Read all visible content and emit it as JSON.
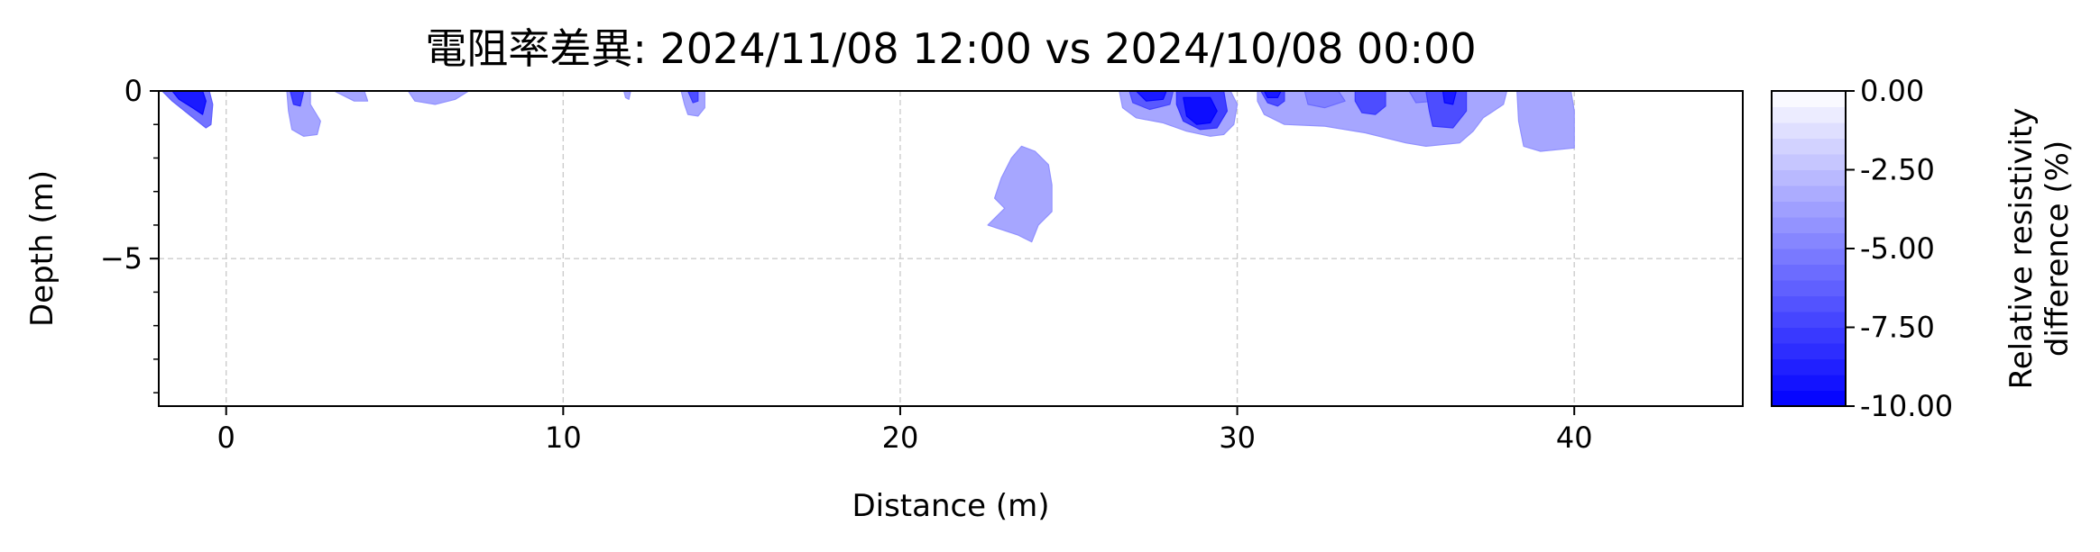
{
  "chart_data": {
    "type": "heatmap",
    "title": "電阻率差異: 2024/11/08 12:00 vs 2024/10/08 00:00",
    "xlabel": "Distance (m)",
    "ylabel": "Depth (m)",
    "xlim": [
      -2,
      45
    ],
    "ylim": [
      -9.4,
      0
    ],
    "x_ticks": [
      0,
      10,
      20,
      30,
      40
    ],
    "x_tick_labels": [
      "0",
      "10",
      "20",
      "30",
      "40"
    ],
    "y_ticks": [
      0,
      -5
    ],
    "y_tick_labels": [
      "0",
      "−5"
    ],
    "grid": true,
    "colorbar": {
      "label_line1": "Relative resistivity",
      "label_line2": "difference (%)",
      "range": [
        -10,
        0
      ],
      "ticks": [
        0,
        -2.5,
        -5,
        -7.5,
        -10
      ],
      "tick_labels": [
        "0.00",
        "-2.50",
        "-5.00",
        "-7.50",
        "-10.00"
      ],
      "levels": [
        -10,
        -9.5,
        -9,
        -8.5,
        -8,
        -7.5,
        -7,
        -6.5,
        -6,
        -5.5,
        -5,
        -4.5,
        -4,
        -3.5,
        -3,
        -2.5,
        -2,
        -1.5,
        -1,
        -0.5,
        0
      ],
      "color_low": "#0000ff",
      "color_high": "#ffffff"
    },
    "regions": [
      {
        "name": "anomaly-left-edge",
        "value": -5.5,
        "points": [
          [
            -1.9,
            0
          ],
          [
            -0.5,
            0
          ],
          [
            -0.4,
            -0.4
          ],
          [
            -0.45,
            -1.0
          ],
          [
            -0.6,
            -1.1
          ],
          [
            -1.1,
            -0.7
          ],
          [
            -1.6,
            -0.3
          ]
        ]
      },
      {
        "name": "anomaly-left-edge-core",
        "value": -9.0,
        "points": [
          [
            -1.6,
            0
          ],
          [
            -0.7,
            0
          ],
          [
            -0.6,
            -0.3
          ],
          [
            -0.7,
            -0.7
          ],
          [
            -1.0,
            -0.5
          ],
          [
            -1.4,
            -0.25
          ]
        ]
      },
      {
        "name": "anomaly-x2",
        "value": -3.5,
        "points": [
          [
            1.8,
            0
          ],
          [
            2.5,
            0
          ],
          [
            2.5,
            -0.4
          ],
          [
            2.8,
            -0.9
          ],
          [
            2.7,
            -1.3
          ],
          [
            2.3,
            -1.35
          ],
          [
            1.95,
            -1.15
          ],
          [
            1.85,
            -0.6
          ]
        ]
      },
      {
        "name": "anomaly-x2-core",
        "value": -7.5,
        "points": [
          [
            1.9,
            0
          ],
          [
            2.3,
            0
          ],
          [
            2.2,
            -0.45
          ],
          [
            2.0,
            -0.4
          ]
        ]
      },
      {
        "name": "anomaly-x3-7",
        "value": -3.5,
        "points": [
          [
            3.2,
            0
          ],
          [
            4.1,
            0
          ],
          [
            4.2,
            -0.3
          ],
          [
            3.8,
            -0.3
          ]
        ]
      },
      {
        "name": "anomaly-x5-7",
        "value": -3.5,
        "points": [
          [
            5.4,
            0
          ],
          [
            7.2,
            0
          ],
          [
            6.8,
            -0.25
          ],
          [
            6.2,
            -0.4
          ],
          [
            5.6,
            -0.3
          ]
        ]
      },
      {
        "name": "anomaly-x12",
        "value": -3.5,
        "points": [
          [
            11.8,
            0
          ],
          [
            12.0,
            0
          ],
          [
            11.95,
            -0.25
          ],
          [
            11.85,
            -0.2
          ]
        ]
      },
      {
        "name": "anomaly-x14",
        "value": -3.5,
        "points": [
          [
            13.5,
            0
          ],
          [
            14.2,
            0
          ],
          [
            14.2,
            -0.5
          ],
          [
            14.0,
            -0.75
          ],
          [
            13.7,
            -0.7
          ],
          [
            13.6,
            -0.4
          ]
        ]
      },
      {
        "name": "anomaly-x14-core",
        "value": -7.0,
        "points": [
          [
            13.7,
            0
          ],
          [
            14.0,
            0
          ],
          [
            14.0,
            -0.3
          ],
          [
            13.85,
            -0.35
          ]
        ]
      },
      {
        "name": "anomaly-x23",
        "value": -3.5,
        "points": [
          [
            23.6,
            -1.65
          ],
          [
            24.0,
            -1.8
          ],
          [
            24.4,
            -2.2
          ],
          [
            24.5,
            -2.8
          ],
          [
            24.5,
            -3.6
          ],
          [
            24.1,
            -4.0
          ],
          [
            23.9,
            -4.5
          ],
          [
            23.5,
            -4.3
          ],
          [
            22.6,
            -4.0
          ],
          [
            23.1,
            -3.5
          ],
          [
            22.8,
            -3.2
          ],
          [
            23.0,
            -2.6
          ],
          [
            23.3,
            -2.0
          ]
        ]
      },
      {
        "name": "anomaly-x25-29",
        "value": -3.5,
        "points": [
          [
            26.5,
            0
          ],
          [
            29.8,
            0
          ],
          [
            30.0,
            -0.4
          ],
          [
            29.9,
            -1.0
          ],
          [
            29.6,
            -1.3
          ],
          [
            29.2,
            -1.35
          ],
          [
            28.5,
            -1.2
          ],
          [
            27.8,
            -0.95
          ],
          [
            27.0,
            -0.8
          ],
          [
            26.6,
            -0.5
          ]
        ]
      },
      {
        "name": "anomaly-x27-4",
        "value": -6.5,
        "points": [
          [
            26.8,
            0
          ],
          [
            28.1,
            0
          ],
          [
            28.0,
            -0.4
          ],
          [
            27.4,
            -0.55
          ],
          [
            26.9,
            -0.35
          ]
        ]
      },
      {
        "name": "anomaly-x27-core",
        "value": -9.0,
        "points": [
          [
            27.0,
            0
          ],
          [
            27.9,
            0
          ],
          [
            27.8,
            -0.25
          ],
          [
            27.3,
            -0.3
          ]
        ]
      },
      {
        "name": "anomaly-x28-7",
        "value": -7.5,
        "points": [
          [
            28.2,
            0
          ],
          [
            29.6,
            0
          ],
          [
            29.7,
            -0.6
          ],
          [
            29.4,
            -1.1
          ],
          [
            28.9,
            -1.15
          ],
          [
            28.4,
            -0.9
          ],
          [
            28.2,
            -0.4
          ]
        ]
      },
      {
        "name": "anomaly-x28-7-core",
        "value": -9.5,
        "points": [
          [
            28.4,
            -0.2
          ],
          [
            29.2,
            -0.2
          ],
          [
            29.4,
            -0.6
          ],
          [
            29.2,
            -0.95
          ],
          [
            28.8,
            -1.0
          ],
          [
            28.5,
            -0.75
          ]
        ]
      },
      {
        "name": "anomaly-x30-37",
        "value": -3.5,
        "points": [
          [
            30.6,
            0
          ],
          [
            38.0,
            0
          ],
          [
            37.9,
            -0.4
          ],
          [
            37.3,
            -0.8
          ],
          [
            37.0,
            -1.2
          ],
          [
            36.6,
            -1.55
          ],
          [
            35.6,
            -1.65
          ],
          [
            35.0,
            -1.55
          ],
          [
            33.8,
            -1.25
          ],
          [
            32.6,
            -1.05
          ],
          [
            31.4,
            -1.0
          ],
          [
            30.8,
            -0.7
          ],
          [
            30.6,
            -0.3
          ]
        ]
      },
      {
        "name": "anomaly-x31",
        "value": -7.0,
        "points": [
          [
            30.7,
            0
          ],
          [
            31.4,
            0
          ],
          [
            31.4,
            -0.3
          ],
          [
            31.2,
            -0.45
          ],
          [
            30.9,
            -0.35
          ]
        ]
      },
      {
        "name": "anomaly-x31-core",
        "value": -9.0,
        "points": [
          [
            30.8,
            0
          ],
          [
            31.3,
            0
          ],
          [
            31.2,
            -0.2
          ],
          [
            30.9,
            -0.2
          ]
        ]
      },
      {
        "name": "anomaly-x32-5",
        "value": -5.0,
        "points": [
          [
            32.0,
            0
          ],
          [
            33.0,
            0
          ],
          [
            33.2,
            -0.3
          ],
          [
            32.6,
            -0.5
          ],
          [
            32.1,
            -0.4
          ]
        ]
      },
      {
        "name": "anomaly-x34",
        "value": -7.0,
        "points": [
          [
            33.5,
            0
          ],
          [
            34.4,
            0
          ],
          [
            34.4,
            -0.45
          ],
          [
            34.1,
            -0.7
          ],
          [
            33.7,
            -0.65
          ],
          [
            33.5,
            -0.3
          ]
        ]
      },
      {
        "name": "anomaly-x35-4",
        "value": -5.0,
        "points": [
          [
            35.1,
            0
          ],
          [
            35.7,
            0
          ],
          [
            35.9,
            -0.3
          ],
          [
            35.3,
            -0.35
          ]
        ]
      },
      {
        "name": "anomaly-x36",
        "value": -7.0,
        "points": [
          [
            35.6,
            0
          ],
          [
            36.8,
            0
          ],
          [
            36.8,
            -0.6
          ],
          [
            36.4,
            -1.1
          ],
          [
            35.8,
            -1.05
          ],
          [
            35.7,
            -0.6
          ]
        ]
      },
      {
        "name": "anomaly-x36-core",
        "value": -9.0,
        "points": [
          [
            36.1,
            0
          ],
          [
            36.5,
            0
          ],
          [
            36.4,
            -0.4
          ],
          [
            36.15,
            -0.35
          ]
        ]
      },
      {
        "name": "anomaly-x39",
        "value": -3.5,
        "points": [
          [
            38.3,
            0
          ],
          [
            39.9,
            0
          ],
          [
            40.0,
            -0.6
          ],
          [
            40.0,
            -1.7
          ],
          [
            39.0,
            -1.8
          ],
          [
            38.5,
            -1.65
          ],
          [
            38.35,
            -0.9
          ]
        ]
      }
    ]
  }
}
